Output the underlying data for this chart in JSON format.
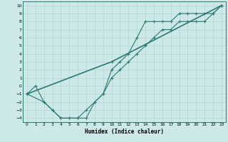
{
  "xlabel": "Humidex (Indice chaleur)",
  "bg_color": "#cce8e8",
  "grid_color": "#b8d8d8",
  "line_color": "#2a7a6e",
  "xlim": [
    -0.5,
    23.5
  ],
  "ylim": [
    -4.5,
    10.5
  ],
  "xticks": [
    0,
    1,
    2,
    3,
    4,
    5,
    6,
    7,
    8,
    9,
    10,
    11,
    12,
    13,
    14,
    15,
    16,
    17,
    18,
    19,
    20,
    21,
    22,
    23
  ],
  "yticks": [
    -4,
    -3,
    -2,
    -1,
    0,
    1,
    2,
    3,
    4,
    5,
    6,
    7,
    8,
    9,
    10
  ],
  "line1_x": [
    0,
    1,
    2,
    3,
    4,
    5,
    6,
    7,
    8,
    9,
    10,
    11,
    12,
    13,
    14,
    15,
    16,
    17,
    18,
    19,
    20,
    21,
    22,
    23
  ],
  "line1_y": [
    -1,
    0,
    -2,
    -3,
    -4,
    -4,
    -4,
    -4,
    -2,
    -1,
    1,
    2,
    3,
    4,
    5,
    6,
    7,
    7,
    8,
    8,
    8,
    8,
    9,
    10
  ],
  "line2_x": [
    0,
    2,
    3,
    4,
    5,
    6,
    7,
    8,
    9,
    10,
    11,
    12,
    13,
    14,
    15,
    16,
    17,
    18,
    19,
    20,
    21,
    22,
    23
  ],
  "line2_y": [
    -1,
    -2,
    -3,
    -4,
    -4,
    -4,
    -3,
    -2,
    -1,
    2,
    3,
    4,
    6,
    8,
    8,
    8,
    8,
    9,
    9,
    9,
    9,
    9,
    10
  ],
  "line3_x": [
    0,
    10,
    23
  ],
  "line3_y": [
    -1,
    3,
    10
  ]
}
